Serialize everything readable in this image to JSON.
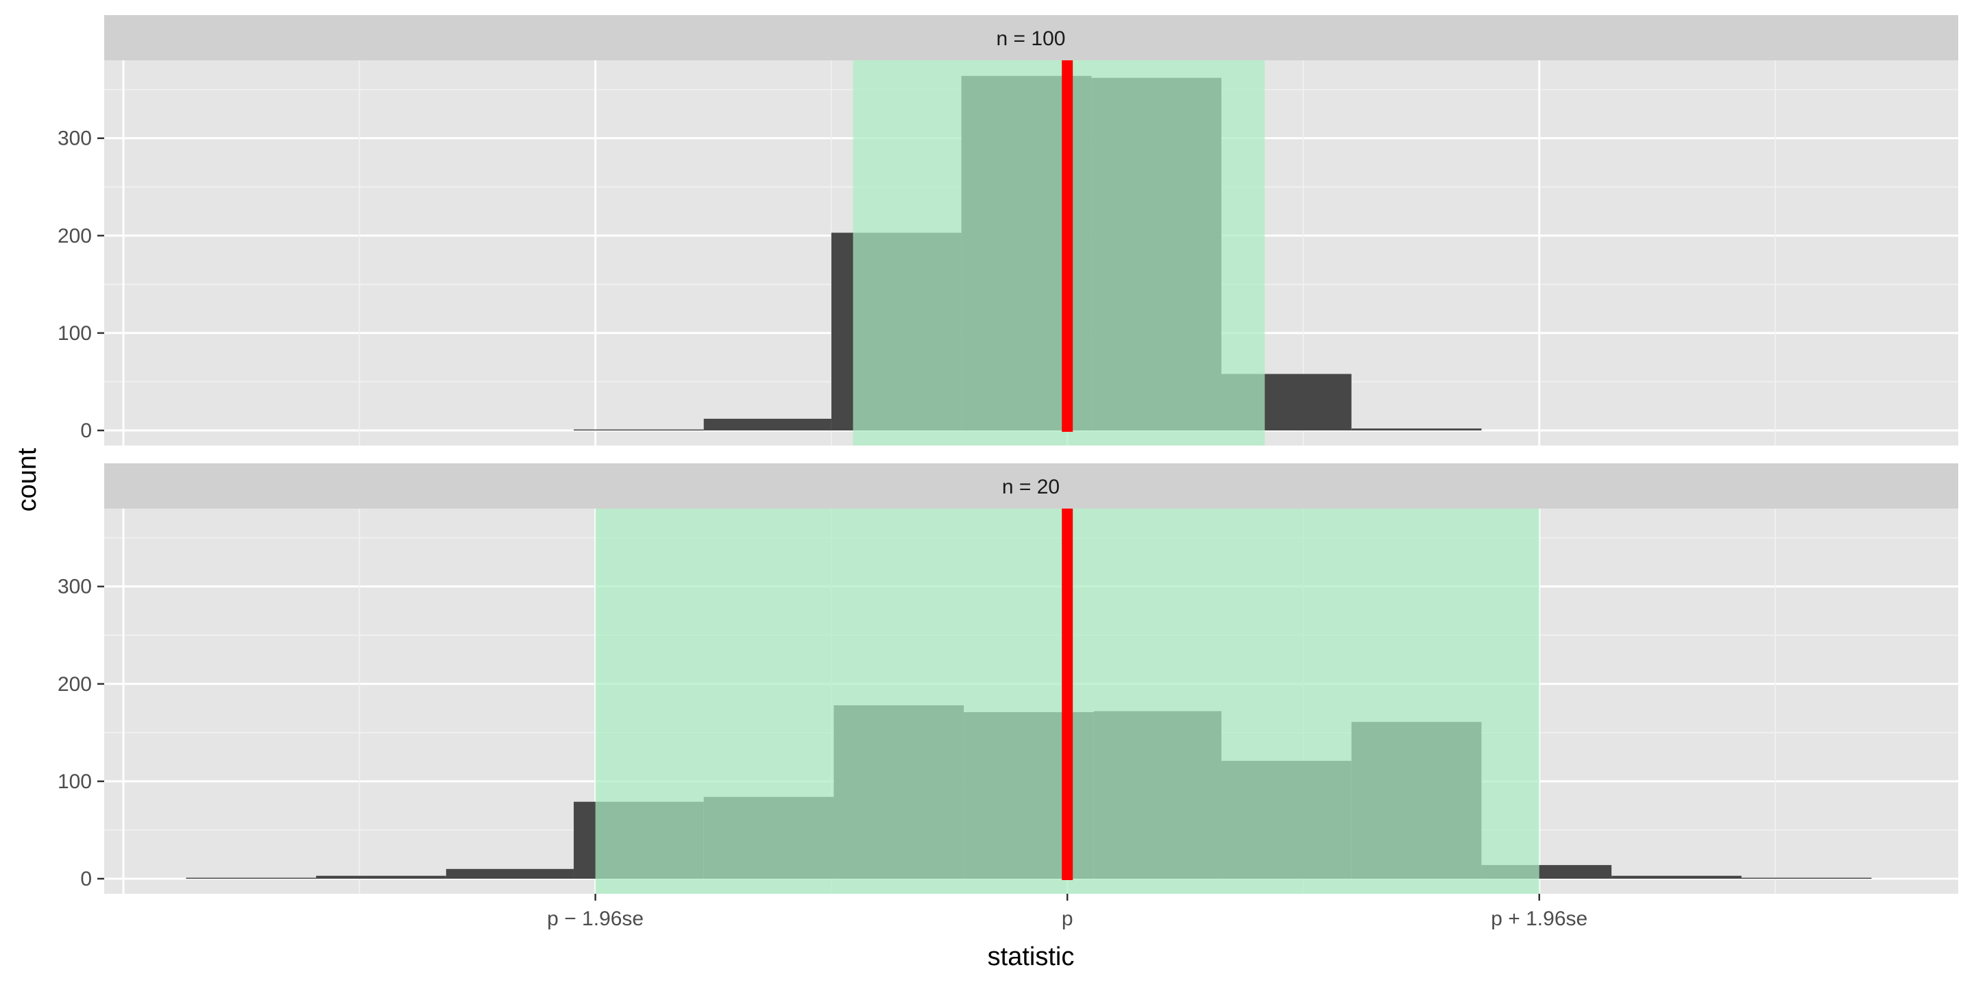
{
  "chart_data": {
    "type": "bar",
    "xlabel": "statistic",
    "ylabel": "count",
    "x_ticks": [
      {
        "value": -1.96,
        "label": "p − 1.96se"
      },
      {
        "value": 0,
        "label": "p"
      },
      {
        "value": 1.96,
        "label": "p + 1.96se"
      }
    ],
    "xlim": [
      -4.0,
      3.7
    ],
    "ylim": [
      0,
      380
    ],
    "y_ticks": [
      0,
      100,
      200,
      300
    ],
    "colors": {
      "bar_outside": "#474747",
      "bar_inside": "#3b7d53",
      "interval_fill": "#abedc2",
      "center_line": "#ff0000",
      "panel_bg": "#e5e5e5",
      "strip_bg": "#d0d0d0"
    },
    "panels": [
      {
        "strip_label": "n = 100",
        "interval": [
          -0.89,
          0.82
        ],
        "bins": [
          {
            "x0": -2.05,
            "x1": -1.51,
            "count": 1
          },
          {
            "x0": -1.51,
            "x1": -0.98,
            "count": 12
          },
          {
            "x0": -0.98,
            "x1": -0.44,
            "count": 203
          },
          {
            "x0": -0.44,
            "x1": 0.1,
            "count": 364
          },
          {
            "x0": 0.1,
            "x1": 0.64,
            "count": 362
          },
          {
            "x0": 0.64,
            "x1": 1.18,
            "count": 58
          },
          {
            "x0": 1.18,
            "x1": 1.72,
            "count": 2
          }
        ]
      },
      {
        "strip_label": "n = 20",
        "interval": [
          -1.96,
          1.96
        ],
        "bins": [
          {
            "x0": -3.66,
            "x1": -3.12,
            "count": 1
          },
          {
            "x0": -3.12,
            "x1": -2.58,
            "count": 3
          },
          {
            "x0": -2.58,
            "x1": -2.05,
            "count": 10
          },
          {
            "x0": -2.05,
            "x1": -1.51,
            "count": 79
          },
          {
            "x0": -1.51,
            "x1": -0.97,
            "count": 84
          },
          {
            "x0": -0.97,
            "x1": -0.43,
            "count": 178
          },
          {
            "x0": -0.43,
            "x1": 0.11,
            "count": 171
          },
          {
            "x0": 0.11,
            "x1": 0.64,
            "count": 172
          },
          {
            "x0": 0.64,
            "x1": 1.18,
            "count": 121
          },
          {
            "x0": 1.18,
            "x1": 1.72,
            "count": 161
          },
          {
            "x0": 1.72,
            "x1": 2.26,
            "count": 14
          },
          {
            "x0": 2.26,
            "x1": 2.8,
            "count": 3
          },
          {
            "x0": 2.8,
            "x1": 3.34,
            "count": 1
          }
        ]
      }
    ]
  }
}
